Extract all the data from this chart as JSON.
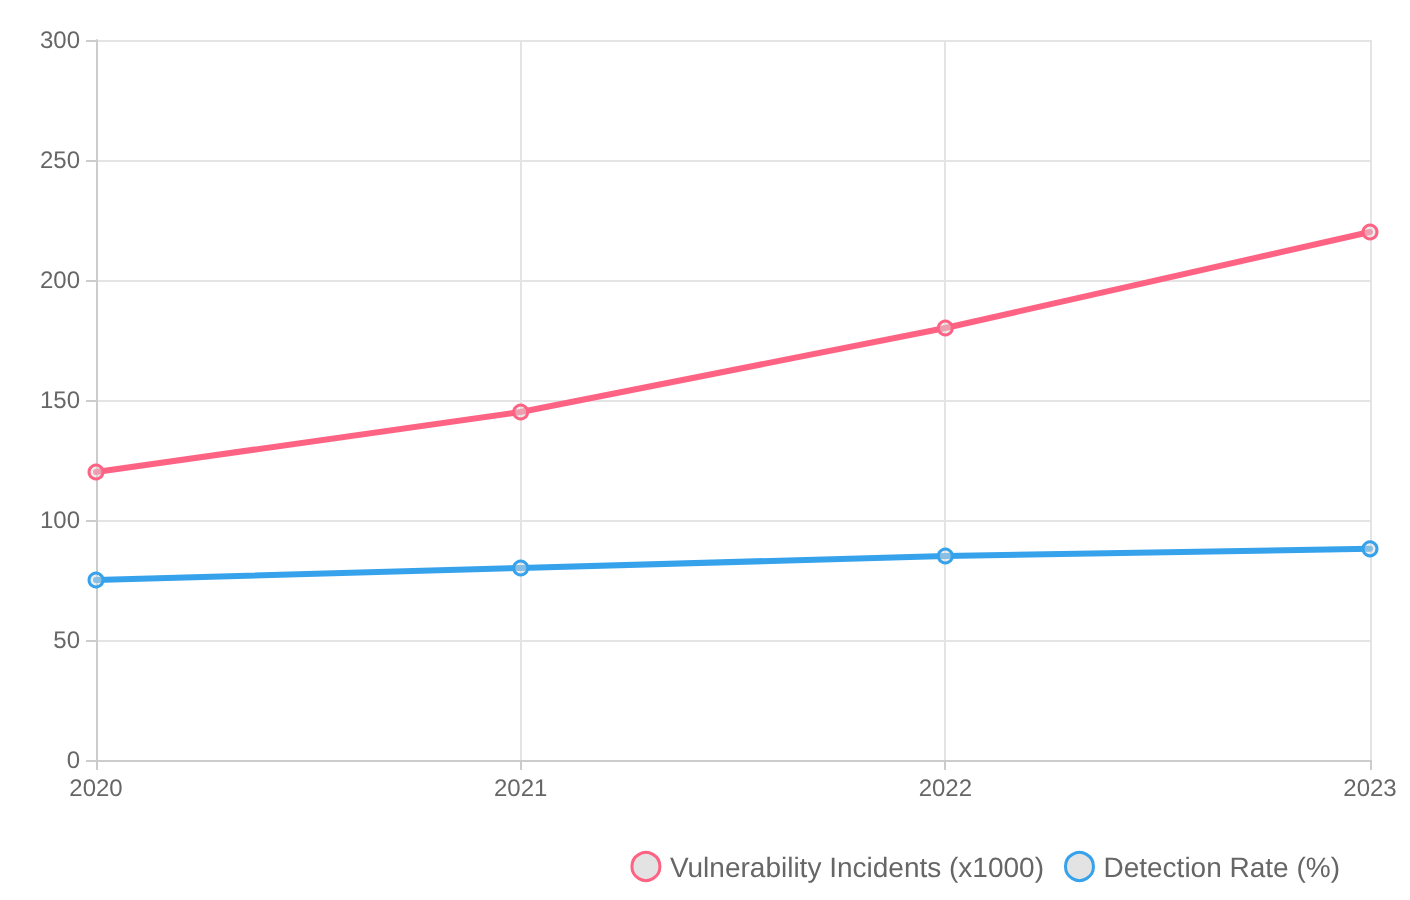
{
  "chart_data": {
    "type": "line",
    "categories": [
      "2020",
      "2021",
      "2022",
      "2023"
    ],
    "series": [
      {
        "name": "Vulnerability Incidents (x1000)",
        "color": "#ff6384",
        "values": [
          120,
          145,
          180,
          220
        ]
      },
      {
        "name": "Detection Rate (%)",
        "color": "#36a2eb",
        "values": [
          75,
          80,
          85,
          88
        ]
      }
    ],
    "ylim": [
      0,
      300
    ],
    "yticks": [
      0,
      50,
      100,
      150,
      200,
      250,
      300
    ],
    "grid": true,
    "legend": "bottom right",
    "marker": "circle",
    "line_style": "solid"
  }
}
